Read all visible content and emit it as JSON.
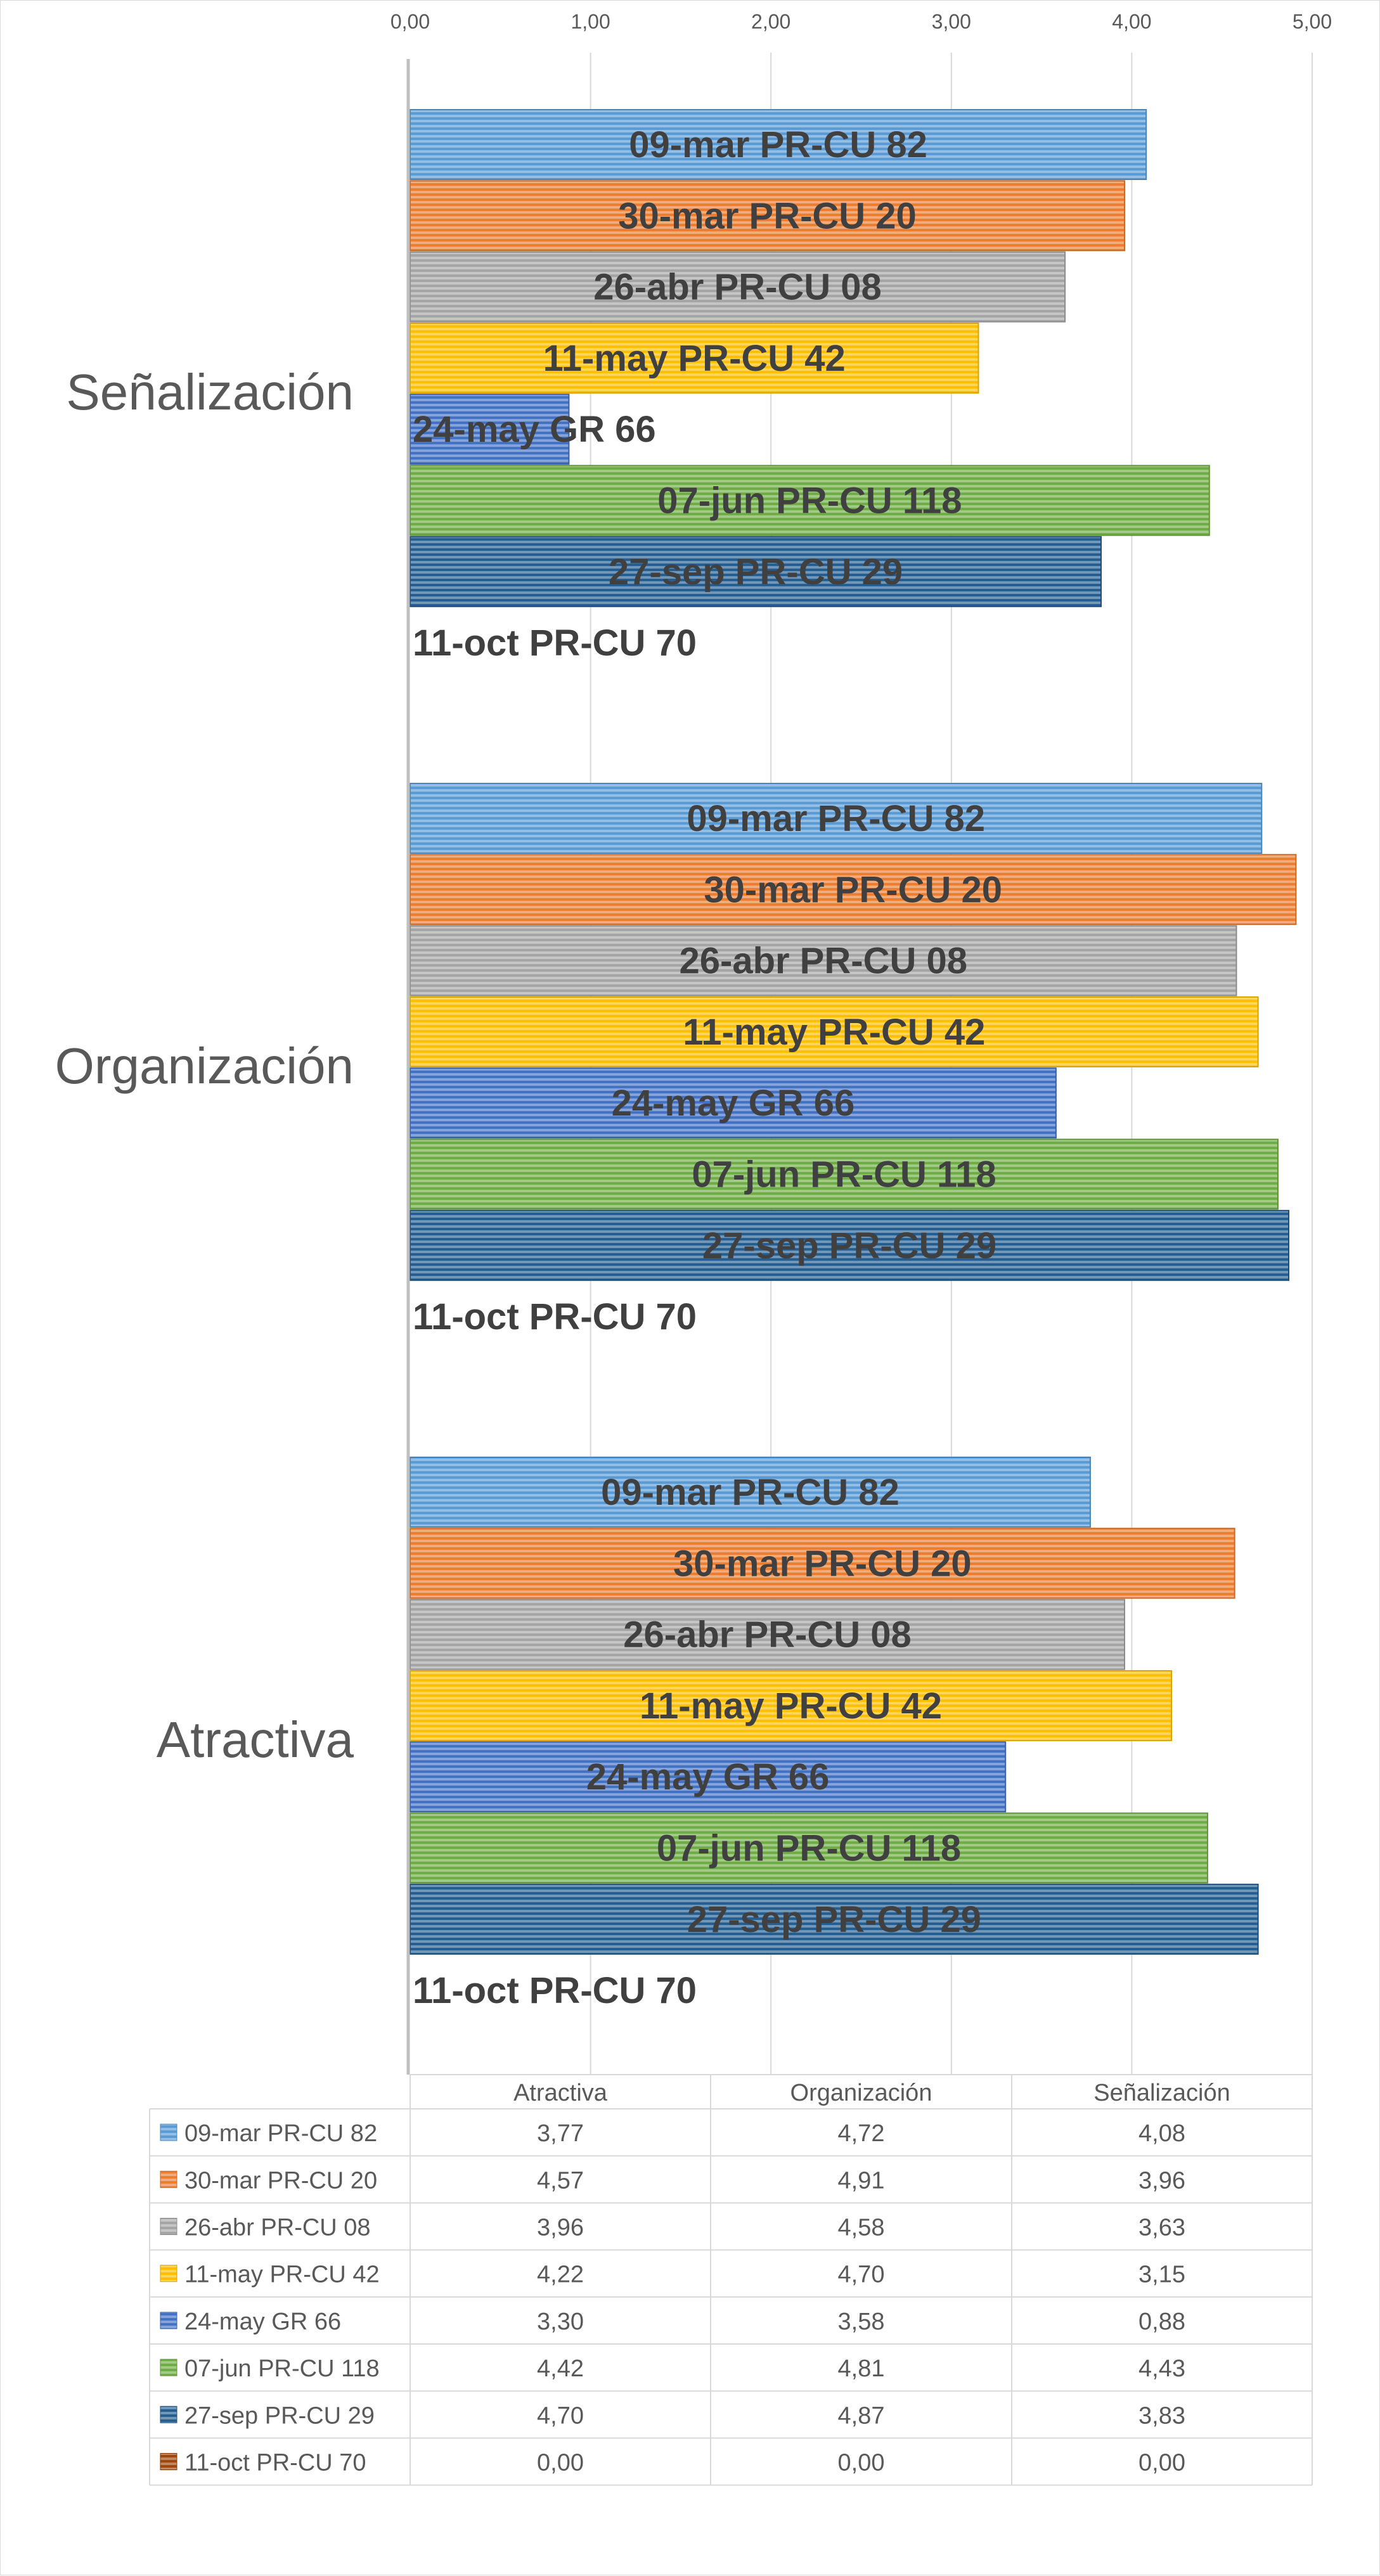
{
  "chart_data": {
    "type": "bar",
    "orientation": "horizontal",
    "categories": [
      "Señalización",
      "Organización",
      "Atractiva"
    ],
    "xlim": [
      0,
      5
    ],
    "x_ticks": [
      "0,00",
      "1,00",
      "2,00",
      "3,00",
      "4,00",
      "5,00"
    ],
    "grid": true,
    "data_labels": "series name",
    "data_table": {
      "columns": [
        "Atractiva",
        "Organización",
        "Señalización"
      ]
    },
    "series": [
      {
        "name": "09-mar PR-CU 82",
        "color": "#5B9BD5",
        "values": [
          4.08,
          4.72,
          3.77
        ],
        "display": [
          "4,08",
          "4,72",
          "3,77"
        ]
      },
      {
        "name": "30-mar PR-CU 20",
        "color": "#ED7D31",
        "values": [
          3.96,
          4.91,
          4.57
        ],
        "display": [
          "3,96",
          "4,91",
          "4,57"
        ]
      },
      {
        "name": "26-abr PR-CU 08",
        "color": "#A5A5A5",
        "values": [
          3.63,
          4.58,
          3.96
        ],
        "display": [
          "3,63",
          "4,58",
          "3,96"
        ]
      },
      {
        "name": "11-may PR-CU 42",
        "color": "#FFC000",
        "values": [
          3.15,
          4.7,
          4.22
        ],
        "display": [
          "3,15",
          "4,70",
          "4,22"
        ]
      },
      {
        "name": "24-may GR 66",
        "color": "#4472C4",
        "values": [
          0.88,
          3.58,
          3.3
        ],
        "display": [
          "0,88",
          "3,58",
          "3,30"
        ]
      },
      {
        "name": "07-jun PR-CU 118",
        "color": "#70AD47",
        "values": [
          4.43,
          4.81,
          4.42
        ],
        "display": [
          "4,43",
          "4,81",
          "4,42"
        ]
      },
      {
        "name": "27-sep PR-CU 29",
        "color": "#255E91",
        "values": [
          3.83,
          4.87,
          4.7
        ],
        "display": [
          "3,83",
          "4,87",
          "4,70"
        ]
      },
      {
        "name": "11-oct PR-CU 70",
        "color": "#9E480E",
        "values": [
          0.0,
          0.0,
          0.0
        ],
        "display": [
          "0,00",
          "0,00",
          "0,00"
        ]
      }
    ]
  }
}
